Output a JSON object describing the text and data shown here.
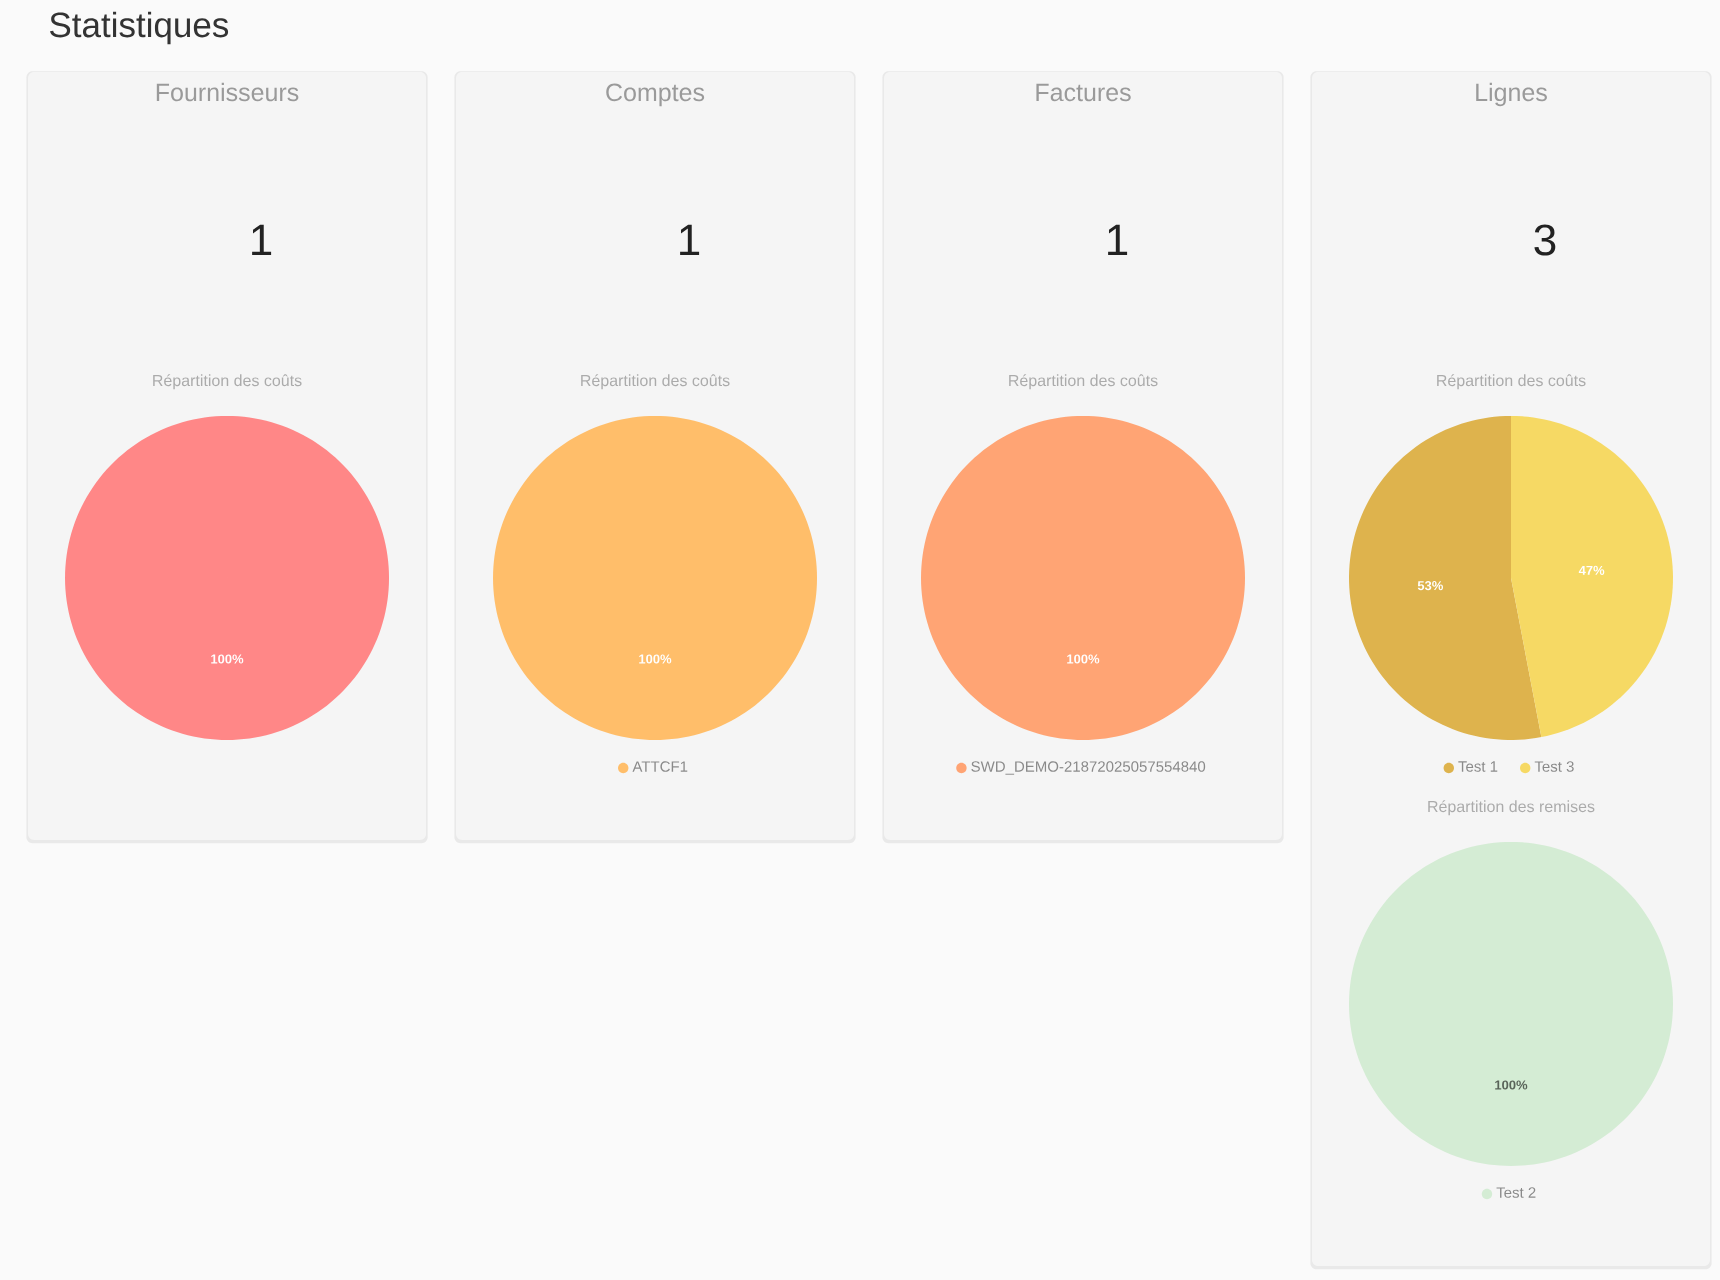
{
  "chart_data": [
    {
      "type": "other",
      "title": "Statistiques"
    },
    {
      "type": "other",
      "title": "Fournisseurs",
      "annotations": [
        "1"
      ]
    },
    {
      "type": "pie",
      "title": "Répartition des coûts",
      "categories": [
        null
      ],
      "values": [
        100
      ],
      "colors": [
        "#ff8787"
      ],
      "value_labels": [
        "100%"
      ]
    },
    {
      "type": "other",
      "title": "Comptes",
      "annotations": [
        "1"
      ]
    },
    {
      "type": "pie",
      "title": "Répartition des coûts",
      "categories": [
        "ATTCF1"
      ],
      "values": [
        100
      ],
      "colors": [
        "#ffbe6a"
      ],
      "value_labels": [
        "100%"
      ],
      "legend": "bottom"
    },
    {
      "type": "other",
      "title": "Factures",
      "annotations": [
        "1"
      ]
    },
    {
      "type": "pie",
      "title": "Répartition des coûts",
      "categories": [
        "SWD_DEMO-21872025057554840"
      ],
      "values": [
        100
      ],
      "colors": [
        "#ffa474"
      ],
      "value_labels": [
        "100%"
      ],
      "legend": "bottom"
    },
    {
      "type": "other",
      "title": "Lignes",
      "annotations": [
        "3"
      ]
    },
    {
      "type": "pie",
      "title": "Répartition des coûts",
      "categories": [
        "Test 1",
        "Test 3"
      ],
      "values": [
        53,
        47
      ],
      "colors": [
        "#deb34d",
        "#f6d964"
      ],
      "value_labels": [
        "53%",
        "47%"
      ],
      "legend": "bottom"
    },
    {
      "type": "pie",
      "title": "Répartition des remises",
      "categories": [
        "Test 2"
      ],
      "values": [
        100
      ],
      "colors": [
        "#d4ecd4"
      ],
      "value_labels": [
        "100%"
      ],
      "legend": "bottom"
    }
  ]
}
